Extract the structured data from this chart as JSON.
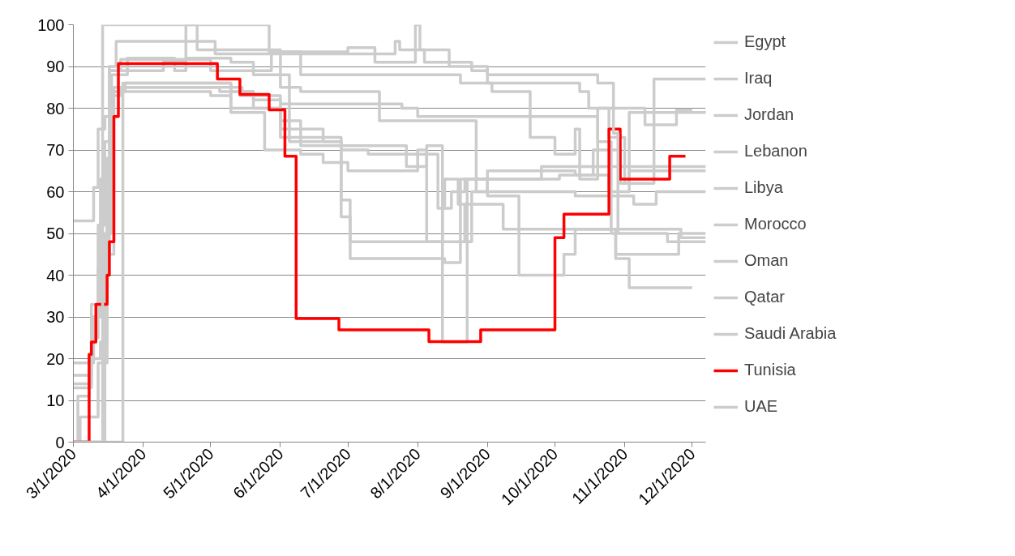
{
  "chart_data": {
    "type": "step",
    "xlim": [
      "2020-03-01",
      "2020-12-07"
    ],
    "ylim": [
      0,
      100
    ],
    "yticks": [
      0,
      10,
      20,
      30,
      40,
      50,
      60,
      70,
      80,
      90,
      100
    ],
    "xticks": [
      {
        "value": "2020-03-01",
        "label": "3/1/2020"
      },
      {
        "value": "2020-04-01",
        "label": "4/1/2020"
      },
      {
        "value": "2020-05-01",
        "label": "5/1/2020"
      },
      {
        "value": "2020-06-01",
        "label": "6/1/2020"
      },
      {
        "value": "2020-07-01",
        "label": "7/1/2020"
      },
      {
        "value": "2020-08-01",
        "label": "8/1/2020"
      },
      {
        "value": "2020-09-01",
        "label": "9/1/2020"
      },
      {
        "value": "2020-10-01",
        "label": "10/1/2020"
      },
      {
        "value": "2020-11-01",
        "label": "11/1/2020"
      },
      {
        "value": "2020-12-01",
        "label": "12/1/2020"
      }
    ],
    "grid": "y",
    "legend": "right",
    "line_style": "solid",
    "marker": "none",
    "series": [
      {
        "name": "Egypt",
        "color": "#cccccc",
        "x": [
          "2020-03-01",
          "2020-03-10",
          "2020-03-12",
          "2020-03-15",
          "2020-03-17",
          "2020-03-20",
          "2020-04-24",
          "2020-05-03",
          "2020-07-20",
          "2020-07-22",
          "2020-07-24",
          "2020-08-04",
          "2020-08-25",
          "2020-09-01",
          "2020-10-08",
          "2020-10-12",
          "2020-10-16",
          "2020-10-25",
          "2020-11-01",
          "2020-11-14",
          "2020-12-07"
        ],
        "values": [
          53,
          61,
          75,
          78,
          90,
          96,
          96,
          93,
          93,
          96,
          94,
          91,
          89,
          86,
          86,
          84,
          80,
          73,
          62,
          87,
          87
        ]
      },
      {
        "name": "Iraq",
        "color": "#cccccc",
        "x": [
          "2020-03-01",
          "2020-03-09",
          "2020-03-12",
          "2020-03-15",
          "2020-03-18",
          "2020-03-22",
          "2020-05-05",
          "2020-05-14",
          "2020-06-01",
          "2020-06-20",
          "2020-06-28",
          "2020-07-02",
          "2020-08-13",
          "2020-08-20",
          "2020-08-23",
          "2020-09-01",
          "2020-10-10",
          "2020-11-05",
          "2020-11-15",
          "2020-12-07"
        ],
        "values": [
          16,
          25,
          42,
          50,
          83,
          85,
          84,
          83,
          75,
          72,
          58,
          44,
          43,
          63,
          63,
          60,
          59,
          57,
          60,
          60
        ]
      },
      {
        "name": "Jordan",
        "color": "#cccccc",
        "x": [
          "2020-03-01",
          "2020-03-04",
          "2020-03-12",
          "2020-03-16",
          "2020-03-19",
          "2020-05-15",
          "2020-05-20",
          "2020-06-01",
          "2020-06-05",
          "2020-06-28",
          "2020-07-02",
          "2020-08-22",
          "2020-09-03",
          "2020-09-08",
          "2020-10-28",
          "2020-11-25",
          "2020-12-07"
        ],
        "values": [
          0,
          6,
          19,
          45,
          85,
          84,
          82,
          81,
          72,
          54,
          48,
          57,
          57,
          51,
          45,
          50,
          50
        ]
      },
      {
        "name": "Lebanon",
        "color": "#cccccc",
        "x": [
          "2020-03-01",
          "2020-03-23",
          "2020-05-10",
          "2020-06-01",
          "2020-06-28",
          "2020-07-10",
          "2020-08-10",
          "2020-08-13",
          "2020-08-19",
          "2020-08-22",
          "2020-08-25",
          "2020-09-01",
          "2020-10-10",
          "2020-10-25",
          "2020-11-03",
          "2020-12-07"
        ],
        "values": [
          0,
          86,
          80,
          73,
          70,
          69,
          56,
          63,
          57,
          48,
          60,
          65,
          64,
          60,
          79,
          78.7
        ]
      },
      {
        "name": "Libya",
        "color": "#cccccc",
        "x": [
          "2020-03-01",
          "2020-03-09",
          "2020-03-13",
          "2020-03-17",
          "2020-03-22",
          "2020-05-01",
          "2020-05-28",
          "2020-06-10",
          "2020-08-20",
          "2020-09-03",
          "2020-09-20",
          "2020-10-01",
          "2020-10-10",
          "2020-10-12",
          "2020-10-20",
          "2020-11-10",
          "2020-11-24",
          "2020-12-01"
        ],
        "values": [
          13,
          30,
          63,
          89,
          91.7,
          89,
          93.5,
          88,
          86,
          84,
          73,
          69,
          75,
          63,
          80,
          76,
          79.6,
          79.6
        ]
      },
      {
        "name": "Morocco",
        "color": "#cccccc",
        "x": [
          "2020-03-01",
          "2020-03-03",
          "2020-03-08",
          "2020-03-13",
          "2020-03-16",
          "2020-03-18",
          "2020-03-25",
          "2020-04-15",
          "2020-04-20",
          "2020-05-10",
          "2020-05-20",
          "2020-06-05",
          "2020-07-25",
          "2020-08-01",
          "2020-10-20",
          "2020-10-26",
          "2020-10-28",
          "2020-11-03",
          "2020-12-01"
        ],
        "values": [
          0,
          11,
          20,
          24,
          60,
          88,
          92,
          89,
          92,
          91,
          88,
          81,
          80,
          78,
          72,
          50,
          44,
          37,
          37
        ]
      },
      {
        "name": "Oman",
        "color": "#cccccc",
        "x": [
          "2020-03-01",
          "2020-03-10",
          "2020-03-13",
          "2020-03-16",
          "2020-03-18",
          "2020-03-24",
          "2020-05-10",
          "2020-05-20",
          "2020-06-01",
          "2020-06-10",
          "2020-07-27",
          "2020-08-05",
          "2020-08-12",
          "2020-08-23",
          "2020-09-25",
          "2020-12-07"
        ],
        "values": [
          19,
          30,
          45,
          68,
          84,
          86,
          84,
          80,
          77,
          71,
          66,
          71,
          24,
          63,
          66,
          66.2
        ]
      },
      {
        "name": "Qatar",
        "color": "#cccccc",
        "x": [
          "2020-03-01",
          "2020-03-09",
          "2020-03-12",
          "2020-03-15",
          "2020-03-18",
          "2020-05-01",
          "2020-05-10",
          "2020-05-25",
          "2020-06-10",
          "2020-06-20",
          "2020-07-01",
          "2020-08-01",
          "2020-08-05",
          "2020-08-12",
          "2020-08-16",
          "2020-08-22",
          "2020-10-03",
          "2020-10-18",
          "2020-10-30",
          "2020-11-03",
          "2020-12-07"
        ],
        "values": [
          14,
          33,
          52,
          72,
          84,
          83,
          79,
          70,
          69,
          67,
          65,
          70,
          48,
          56,
          60,
          63,
          64,
          70,
          62,
          65,
          64.8
        ]
      },
      {
        "name": "Saudi Arabia",
        "color": "#cccccc",
        "x": [
          "2020-03-01",
          "2020-03-15",
          "2020-03-17",
          "2020-04-10",
          "2020-04-20",
          "2020-04-25",
          "2020-06-01",
          "2020-06-10",
          "2020-07-15",
          "2020-08-27",
          "2020-09-01",
          "2020-09-15",
          "2020-10-05",
          "2020-10-10",
          "2020-11-26",
          "2020-12-07"
        ],
        "values": [
          0,
          45,
          89,
          91,
          100,
          94,
          85,
          84,
          77,
          60,
          59,
          40,
          45,
          51,
          49,
          49
        ]
      },
      {
        "name": "Tunisia",
        "color": "#ff0000",
        "x": [
          "2020-03-01",
          "2020-03-08",
          "2020-03-09",
          "2020-03-11",
          "2020-03-16",
          "2020-03-17",
          "2020-03-19",
          "2020-03-21",
          "2020-05-04",
          "2020-05-14",
          "2020-05-27",
          "2020-06-03",
          "2020-06-08",
          "2020-06-27",
          "2020-08-06",
          "2020-08-29",
          "2020-10-01",
          "2020-10-05",
          "2020-10-25",
          "2020-10-30",
          "2020-11-21",
          "2020-11-28"
        ],
        "values": [
          0,
          21,
          24,
          33,
          40,
          48,
          78,
          90.7,
          87,
          83.3,
          79.6,
          68.5,
          29.6,
          26.9,
          24.1,
          26.9,
          49,
          54.6,
          75,
          63,
          68.5,
          68.5
        ]
      },
      {
        "name": "UAE",
        "color": "#cccccc",
        "x": [
          "2020-03-01",
          "2020-03-14",
          "2020-05-25",
          "2020-05-27",
          "2020-06-20",
          "2020-07-01",
          "2020-07-13",
          "2020-07-31",
          "2020-08-02",
          "2020-08-15",
          "2020-09-01",
          "2020-10-20",
          "2020-10-27",
          "2020-10-29",
          "2020-11-20",
          "2020-12-07"
        ],
        "values": [
          0,
          100,
          100,
          93.5,
          93.5,
          94.5,
          91,
          100,
          94,
          90,
          88,
          86,
          74,
          50,
          48,
          48
        ]
      }
    ]
  }
}
